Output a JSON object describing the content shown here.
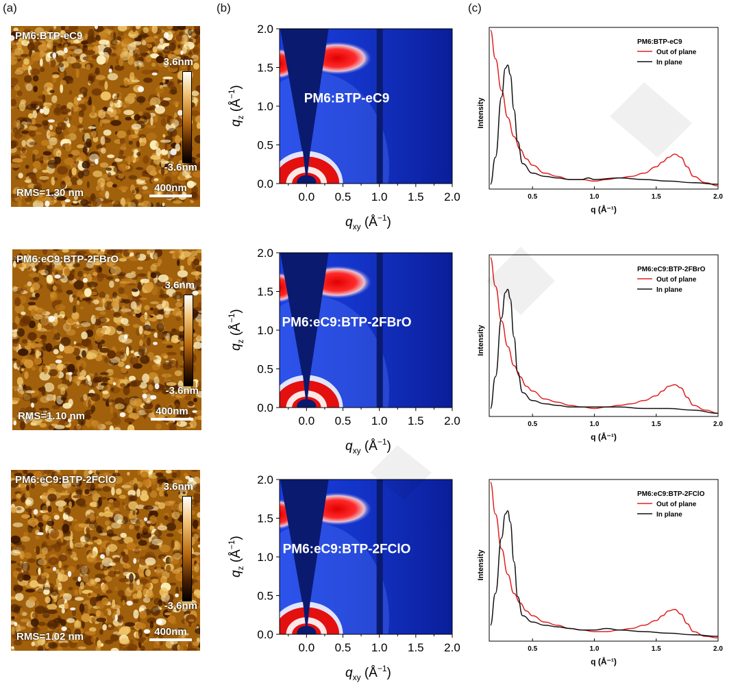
{
  "panel_labels": {
    "a": "(a)",
    "b": "(b)",
    "c": "(c)"
  },
  "afm": {
    "items": [
      {
        "title": "PM6:BTP-eC9",
        "rms": "RMS=1.30 nm",
        "scale": "400nm",
        "cbar_top": "3.6nm",
        "cbar_bottom": "-3.6nm"
      },
      {
        "title": "PM6:eC9:BTP-2FBrO",
        "rms": "RMS=1.10 nm",
        "scale": "400nm",
        "cbar_top": "3.6nm",
        "cbar_bottom": "-3.6nm"
      },
      {
        "title": "PM6:eC9:BTP-2FClO",
        "rms": "RMS=1.02 nm",
        "scale": "400nm",
        "cbar_top": "3.6nm",
        "cbar_bottom": "-3.6nm"
      }
    ]
  },
  "giwaxs": {
    "items": [
      {
        "title": "PM6:BTP-eC9"
      },
      {
        "title": "PM6:eC9:BTP-2FBrO"
      },
      {
        "title": "PM6:eC9:BTP-2FClO"
      }
    ],
    "xticks": [
      "0.0",
      "0.5",
      "1.0",
      "1.5",
      "2.0"
    ],
    "yticks": [
      "0.0",
      "0.5",
      "1.0",
      "1.5",
      "2.0"
    ]
  },
  "colors": {
    "out_of_plane": "#e02020",
    "in_plane": "#111111",
    "giwaxs_bg": "#0a1a6e",
    "afm_mid": "#a0600c"
  },
  "chart_data": [
    {
      "type": "line",
      "legend_title": "PM6:BTP-eC9",
      "xlabel": "q (Å⁻¹)",
      "ylabel": "Intensity",
      "xlim": [
        0.15,
        2.0
      ],
      "xticks": [
        "0.5",
        "1.0",
        "1.5",
        "2.0"
      ],
      "series": [
        {
          "name": "Out of plane",
          "x": [
            0.16,
            0.2,
            0.25,
            0.3,
            0.35,
            0.4,
            0.45,
            0.5,
            0.6,
            0.7,
            0.8,
            0.9,
            1.0,
            1.1,
            1.2,
            1.3,
            1.4,
            1.5,
            1.55,
            1.6,
            1.65,
            1.7,
            1.75,
            1.8,
            1.9,
            2.0
          ],
          "y": [
            1.0,
            0.82,
            0.62,
            0.45,
            0.33,
            0.25,
            0.19,
            0.15,
            0.1,
            0.08,
            0.06,
            0.06,
            0.05,
            0.06,
            0.07,
            0.08,
            0.1,
            0.14,
            0.17,
            0.2,
            0.22,
            0.2,
            0.14,
            0.08,
            0.04,
            0.02
          ]
        },
        {
          "name": "In plane",
          "x": [
            0.16,
            0.2,
            0.25,
            0.28,
            0.3,
            0.32,
            0.35,
            0.38,
            0.42,
            0.5,
            0.6,
            0.7,
            0.8,
            0.9,
            0.95,
            1.0,
            1.2,
            1.4,
            1.6,
            1.8,
            2.0
          ],
          "y": [
            0.03,
            0.2,
            0.58,
            0.76,
            0.78,
            0.72,
            0.5,
            0.3,
            0.16,
            0.1,
            0.08,
            0.07,
            0.06,
            0.06,
            0.07,
            0.06,
            0.07,
            0.06,
            0.05,
            0.04,
            0.03
          ]
        }
      ]
    },
    {
      "type": "line",
      "legend_title": "PM6:eC9:BTP-2FBrO",
      "xlabel": "q (Å⁻¹)",
      "ylabel": "Intensity",
      "xlim": [
        0.15,
        2.0
      ],
      "xticks": [
        "0.5",
        "1.0",
        "1.5",
        "2.0"
      ],
      "series": [
        {
          "name": "Out of plane",
          "x": [
            0.16,
            0.2,
            0.25,
            0.3,
            0.35,
            0.4,
            0.45,
            0.5,
            0.6,
            0.7,
            0.8,
            0.9,
            1.0,
            1.1,
            1.2,
            1.3,
            1.4,
            1.5,
            1.55,
            1.6,
            1.65,
            1.7,
            1.75,
            1.8,
            1.9,
            2.0
          ],
          "y": [
            1.0,
            0.82,
            0.6,
            0.44,
            0.32,
            0.25,
            0.19,
            0.16,
            0.11,
            0.09,
            0.07,
            0.06,
            0.05,
            0.06,
            0.07,
            0.08,
            0.1,
            0.13,
            0.16,
            0.19,
            0.2,
            0.18,
            0.12,
            0.07,
            0.04,
            0.02
          ]
        },
        {
          "name": "In plane",
          "x": [
            0.16,
            0.2,
            0.25,
            0.28,
            0.3,
            0.32,
            0.35,
            0.38,
            0.42,
            0.5,
            0.6,
            0.7,
            0.8,
            0.9,
            1.0,
            1.2,
            1.4,
            1.6,
            1.8,
            2.0
          ],
          "y": [
            0.05,
            0.25,
            0.62,
            0.78,
            0.8,
            0.74,
            0.5,
            0.28,
            0.15,
            0.1,
            0.08,
            0.07,
            0.06,
            0.06,
            0.06,
            0.06,
            0.05,
            0.05,
            0.04,
            0.02
          ]
        }
      ]
    },
    {
      "type": "line",
      "legend_title": "PM6:eC9:BTP-2FClO",
      "xlabel": "q (Å⁻¹)",
      "ylabel": "Intensity",
      "xlim": [
        0.15,
        2.0
      ],
      "xticks": [
        "0.5",
        "1.0",
        "1.5",
        "2.0"
      ],
      "series": [
        {
          "name": "Out of plane",
          "x": [
            0.16,
            0.2,
            0.25,
            0.3,
            0.35,
            0.4,
            0.45,
            0.5,
            0.6,
            0.7,
            0.8,
            0.9,
            1.0,
            1.1,
            1.2,
            1.3,
            1.4,
            1.5,
            1.55,
            1.6,
            1.65,
            1.7,
            1.75,
            1.8,
            1.9,
            2.0
          ],
          "y": [
            1.0,
            0.8,
            0.58,
            0.42,
            0.3,
            0.24,
            0.19,
            0.16,
            0.12,
            0.1,
            0.08,
            0.07,
            0.06,
            0.06,
            0.07,
            0.08,
            0.1,
            0.13,
            0.16,
            0.19,
            0.2,
            0.17,
            0.11,
            0.06,
            0.03,
            0.02
          ]
        },
        {
          "name": "In plane",
          "x": [
            0.16,
            0.2,
            0.25,
            0.28,
            0.3,
            0.32,
            0.35,
            0.38,
            0.42,
            0.5,
            0.6,
            0.7,
            0.8,
            0.9,
            1.0,
            1.1,
            1.2,
            1.4,
            1.6,
            1.8,
            2.0
          ],
          "y": [
            0.1,
            0.3,
            0.65,
            0.8,
            0.82,
            0.75,
            0.5,
            0.28,
            0.16,
            0.12,
            0.1,
            0.09,
            0.08,
            0.07,
            0.07,
            0.08,
            0.07,
            0.06,
            0.05,
            0.04,
            0.03
          ]
        }
      ]
    }
  ]
}
